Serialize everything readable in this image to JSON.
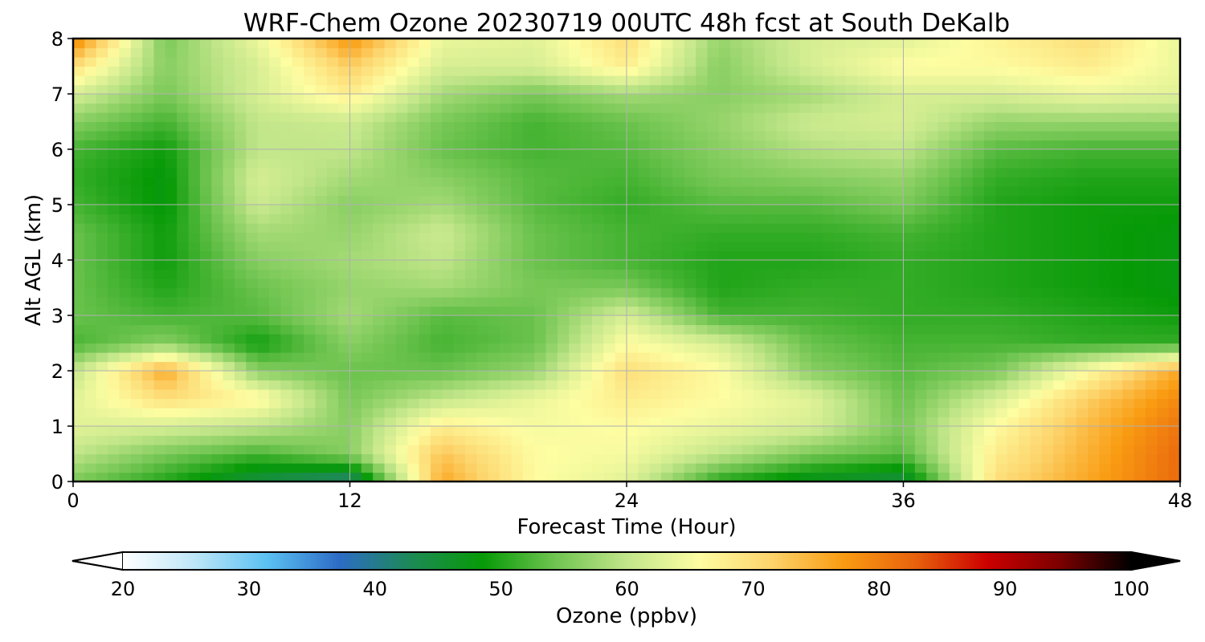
{
  "chart_data": {
    "type": "heatmap",
    "title": "WRF-Chem Ozone  20230719 00UTC 48h fcst at South DeKalb",
    "xlabel": "Forecast Time (Hour)",
    "ylabel": "Alt AGL (km)",
    "xlim": [
      0,
      48
    ],
    "ylim": [
      0,
      8
    ],
    "x_ticks": [
      "0",
      "12",
      "24",
      "36",
      "48"
    ],
    "y_ticks": [
      "0",
      "1",
      "2",
      "3",
      "4",
      "5",
      "6",
      "7",
      "8"
    ],
    "grid": true,
    "x": [
      0,
      4,
      8,
      12,
      16,
      20,
      24,
      28,
      32,
      36,
      40,
      44,
      48
    ],
    "y": [
      0,
      0.5,
      1,
      1.5,
      2,
      2.5,
      3,
      3.5,
      4,
      4.5,
      5,
      5.5,
      6,
      6.5,
      7,
      7.5,
      8
    ],
    "z": [
      [
        55,
        50,
        44,
        40,
        76,
        66,
        63,
        50,
        46,
        44,
        70,
        76,
        82
      ],
      [
        60,
        55,
        52,
        56,
        73,
        66,
        65,
        60,
        55,
        53,
        68,
        75,
        82
      ],
      [
        63,
        62,
        60,
        56,
        68,
        65,
        66,
        64,
        62,
        55,
        66,
        74,
        81
      ],
      [
        63,
        70,
        67,
        55,
        60,
        64,
        68,
        66,
        63,
        54,
        62,
        72,
        79
      ],
      [
        60,
        76,
        56,
        54,
        54,
        57,
        70,
        66,
        56,
        53,
        55,
        66,
        76
      ],
      [
        52,
        56,
        49,
        56,
        52,
        54,
        66,
        62,
        54,
        52,
        52,
        51,
        51
      ],
      [
        54,
        52,
        53,
        58,
        53,
        54,
        62,
        52,
        52,
        51,
        51,
        50,
        49
      ],
      [
        54,
        50,
        54,
        57,
        58,
        55,
        55,
        50,
        51,
        51,
        50,
        49,
        48
      ],
      [
        54,
        49,
        56,
        58,
        60,
        54,
        52,
        50,
        50,
        51,
        50,
        49,
        48
      ],
      [
        54,
        49,
        58,
        57,
        61,
        54,
        52,
        51,
        51,
        52,
        50,
        49,
        48
      ],
      [
        52,
        48,
        61,
        56,
        58,
        53,
        51,
        53,
        53,
        55,
        50,
        49,
        49
      ],
      [
        51,
        48,
        62,
        58,
        56,
        53,
        52,
        55,
        56,
        57,
        51,
        50,
        50
      ],
      [
        52,
        49,
        60,
        60,
        54,
        52,
        53,
        56,
        59,
        60,
        53,
        52,
        52
      ],
      [
        56,
        52,
        60,
        61,
        55,
        52,
        54,
        57,
        61,
        62,
        57,
        57,
        57
      ],
      [
        62,
        55,
        62,
        68,
        58,
        55,
        58,
        56,
        58,
        62,
        62,
        64,
        63
      ],
      [
        70,
        56,
        62,
        72,
        62,
        62,
        68,
        56,
        62,
        66,
        66,
        68,
        64
      ],
      [
        80,
        55,
        64,
        78,
        64,
        63,
        70,
        57,
        62,
        63,
        67,
        70,
        64
      ]
    ],
    "colorbar": {
      "label": "Ozone  (ppbv)",
      "range": [
        20,
        100
      ],
      "ticks": [
        "20",
        "30",
        "40",
        "50",
        "60",
        "70",
        "80",
        "90",
        "100"
      ],
      "extend": "both",
      "colors": [
        "#ffffff",
        "#bde6f7",
        "#5bc1f2",
        "#2d6cc6",
        "#1d8a55",
        "#079a07",
        "#6fc450",
        "#c2e68a",
        "#fdfda2",
        "#fdd46c",
        "#f99c12",
        "#e8620d",
        "#cc0000",
        "#7d0000",
        "#000000"
      ]
    }
  }
}
